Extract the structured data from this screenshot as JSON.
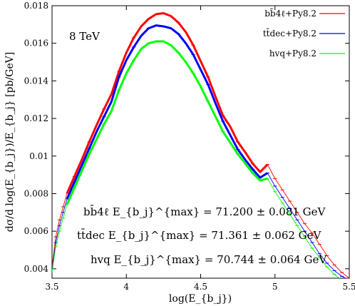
{
  "chart_data": {
    "type": "line",
    "xlabel": "log(E_{b_j})",
    "ylabel": "dσ/d log(E_{b_j})/E_{b_j} [pb/GeV]",
    "xlim": [
      3.5,
      5.5
    ],
    "ylim": [
      0.0035,
      0.018
    ],
    "x_ticks": [
      "3.5",
      "4",
      "4.5",
      "5",
      "5.5"
    ],
    "y_ticks": [
      "0.004",
      "0.006",
      "0.008",
      "0.01",
      "0.012",
      "0.014",
      "0.016",
      "0.018"
    ],
    "energy_label": "8 TeV",
    "series": [
      {
        "name": "bb̄4ℓ+Py8.2",
        "color": "#ff0000",
        "thick_x": [
          3.6,
          3.65,
          3.7,
          3.75,
          3.8,
          3.85,
          3.9,
          3.95,
          4.0,
          4.05,
          4.1,
          4.15,
          4.2,
          4.25,
          4.3,
          4.35,
          4.4,
          4.45,
          4.5,
          4.55,
          4.6,
          4.65,
          4.7,
          4.75,
          4.8,
          4.85,
          4.9,
          4.95
        ],
        "thick_y": [
          0.008,
          0.0089,
          0.0098,
          0.01075,
          0.01165,
          0.0125,
          0.0133,
          0.0145,
          0.0155,
          0.0163,
          0.0169,
          0.0173,
          0.01755,
          0.0176,
          0.01745,
          0.0171,
          0.0166,
          0.0159,
          0.01505,
          0.0142,
          0.01315,
          0.01215,
          0.01155,
          0.01075,
          0.0102,
          0.0096,
          0.00915,
          0.00955
        ],
        "thin_x": [
          3.5,
          3.525,
          3.55,
          3.575,
          3.6,
          4.95,
          5.0,
          5.05,
          5.1,
          5.15,
          5.2,
          5.25,
          5.3,
          5.35,
          5.4,
          5.45,
          5.5
        ],
        "thin_y": [
          0.0041,
          0.0057,
          0.0066,
          0.0073,
          0.008,
          0.00955,
          0.0088,
          0.0082,
          0.0076,
          0.007,
          0.0064,
          0.0059,
          0.0053,
          0.0047,
          0.0042,
          0.0038,
          0.0035
        ]
      },
      {
        "name": "tt̄dec+Py8.2",
        "color": "#0000ff",
        "thick_x": [
          3.6,
          3.65,
          3.7,
          3.75,
          3.8,
          3.85,
          3.9,
          3.95,
          4.0,
          4.05,
          4.1,
          4.15,
          4.2,
          4.25,
          4.3,
          4.35,
          4.4,
          4.45,
          4.5,
          4.55,
          4.6,
          4.65,
          4.7,
          4.75,
          4.8,
          4.85,
          4.9,
          4.95
        ],
        "thick_y": [
          0.0077,
          0.0086,
          0.0095,
          0.0104,
          0.0113,
          0.0121,
          0.0129,
          0.0142,
          0.0151,
          0.0158,
          0.0164,
          0.0168,
          0.01695,
          0.0169,
          0.0168,
          0.0165,
          0.016,
          0.0154,
          0.0146,
          0.0138,
          0.0128,
          0.01185,
          0.0111,
          0.01035,
          0.0098,
          0.0093,
          0.00885,
          0.0091
        ],
        "thin_x": [
          3.5,
          3.525,
          3.55,
          3.575,
          3.6,
          4.95,
          5.0,
          5.05,
          5.1,
          5.15,
          5.2,
          5.25,
          5.3,
          5.35,
          5.4,
          5.45,
          5.5
        ],
        "thin_y": [
          0.0039,
          0.0054,
          0.0063,
          0.007,
          0.0077,
          0.0091,
          0.0084,
          0.0078,
          0.0072,
          0.0066,
          0.006,
          0.0054,
          0.0048,
          0.0043,
          0.0039,
          0.0036,
          0.0034
        ]
      },
      {
        "name": "hvq+Py8.2",
        "color": "#00ff00",
        "thick_x": [
          3.6,
          3.65,
          3.7,
          3.75,
          3.8,
          3.85,
          3.9,
          3.95,
          4.0,
          4.05,
          4.1,
          4.15,
          4.2,
          4.25,
          4.3,
          4.35,
          4.4,
          4.45,
          4.5,
          4.55,
          4.6,
          4.65,
          4.7,
          4.75,
          4.8,
          4.85,
          4.9,
          4.95
        ],
        "thick_y": [
          0.0074,
          0.0083,
          0.0092,
          0.0101,
          0.0109,
          0.0117,
          0.0124,
          0.0135,
          0.0144,
          0.0151,
          0.0157,
          0.016,
          0.0161,
          0.0161,
          0.0159,
          0.0155,
          0.015,
          0.0144,
          0.0137,
          0.0129,
          0.0121,
          0.0113,
          0.0107,
          0.0101,
          0.0096,
          0.0091,
          0.0087,
          0.0088
        ],
        "thin_x": [
          3.5,
          3.525,
          3.55,
          3.575,
          3.6,
          4.95,
          5.0,
          5.05,
          5.1,
          5.15,
          5.2,
          5.25,
          5.3,
          5.35,
          5.4,
          5.45,
          5.5
        ],
        "thin_y": [
          0.0038,
          0.0052,
          0.006,
          0.0067,
          0.0074,
          0.0088,
          0.0081,
          0.0075,
          0.0069,
          0.0063,
          0.0057,
          0.0051,
          0.0046,
          0.0041,
          0.0037,
          0.0034,
          0.0032
        ]
      }
    ],
    "annotations": [
      "bb̄4ℓ E_{b_j}^{max} = 71.200 ± 0.081 GeV",
      "tt̄dec E_{b_j}^{max} = 71.361 ± 0.062 GeV",
      "hvq E_{b_j}^{max} = 70.744 ± 0.064 GeV"
    ],
    "legend_position": "top-right",
    "grid": false
  }
}
